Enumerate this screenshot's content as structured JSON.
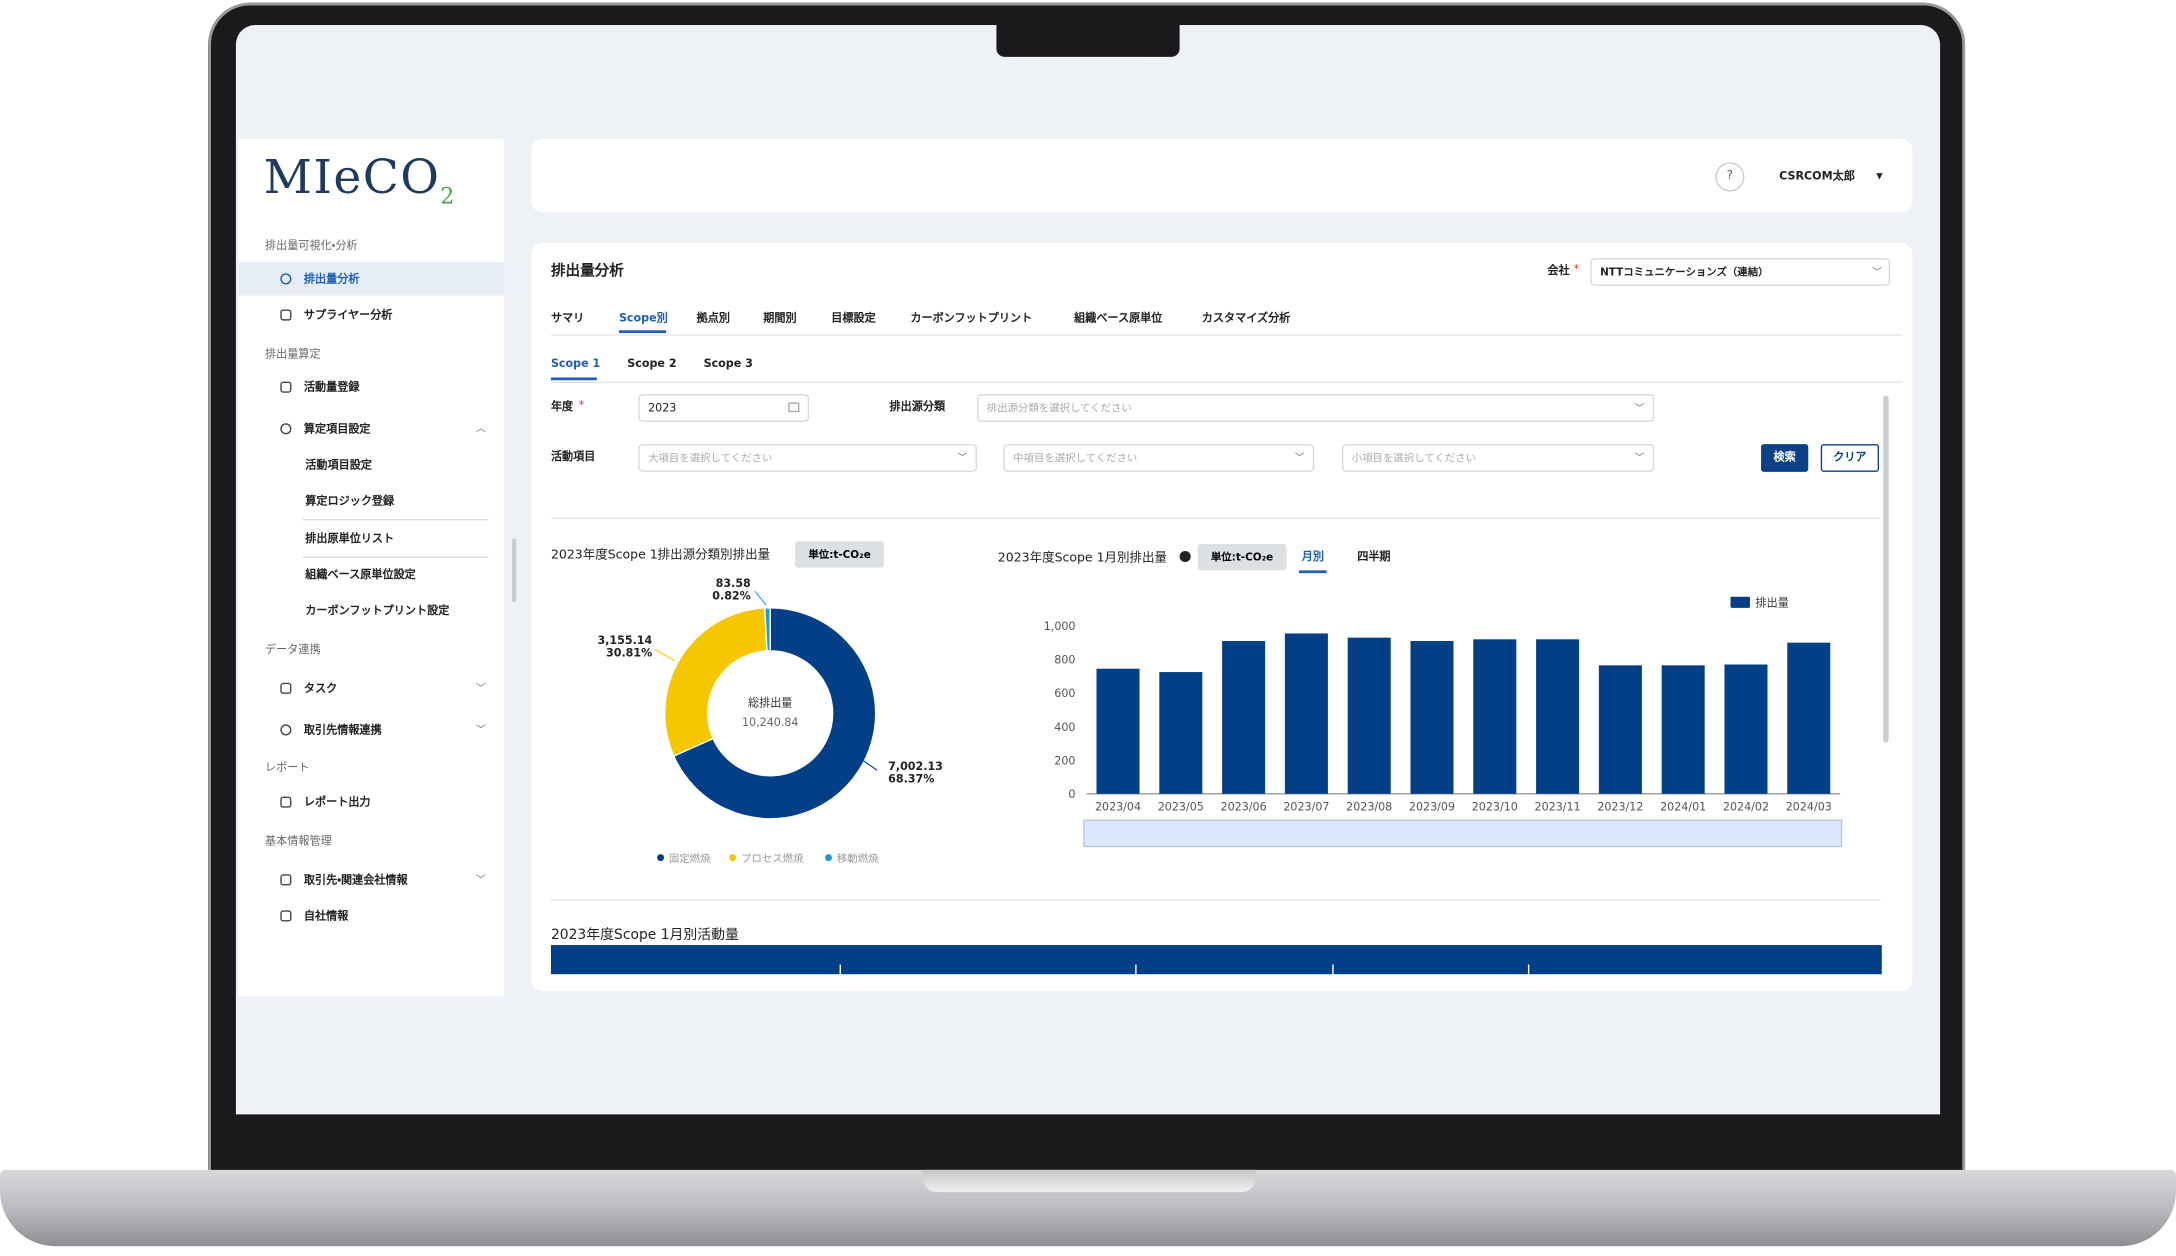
{
  "brand": {
    "logo": "MIeCO",
    "logo_sub": "2"
  },
  "sidebar": {
    "groups": [
      {
        "title": "排出量可視化・分析",
        "items": [
          "排出量分析",
          "サプライヤー分析"
        ]
      },
      {
        "title": "排出量算定",
        "items": [
          "活動量登録",
          "算定項目設定"
        ],
        "subitems": [
          "活動項目設定",
          "算定ロジック登録",
          "排出原単位リスト",
          "組織ベース原単位設定",
          "カーボンフットプリント設定"
        ]
      },
      {
        "title": "データ連携",
        "items": [
          "タスク",
          "取引先情報連携"
        ]
      },
      {
        "title": "レポート",
        "items": [
          "レポート出力"
        ]
      },
      {
        "title": "基本情報管理",
        "items": [
          "取引先・関連会社情報",
          "自社情報"
        ]
      }
    ]
  },
  "header": {
    "help": "?",
    "user": "CSRCOM太郎"
  },
  "page": {
    "title": "排出量分析",
    "company_label": "会社",
    "required": "*",
    "company": "NTTコミュニケーションズ（連結）",
    "tabs": [
      "サマリ",
      "Scope別",
      "拠点別",
      "期間別",
      "目標設定",
      "カーボンフットプリント",
      "組織ベース原単位",
      "カスタマイズ分析"
    ],
    "scope_tabs": [
      "Scope 1",
      "Scope 2",
      "Scope 3"
    ],
    "filters": {
      "year_label": "年度",
      "year": "2023",
      "source_label": "排出源分類",
      "source_placeholder": "排出源分類を選択してください",
      "activity_label": "活動項目",
      "large_placeholder": "大項目を選択してください",
      "medium_placeholder": "中項目を選択してください",
      "small_placeholder": "小項目を選択してください",
      "search": "検索",
      "clear": "クリア"
    }
  },
  "chart_data": [
    {
      "type": "pie",
      "title": "2023年度Scope 1排出源分類別排出量",
      "unit": "単位:t-CO₂e",
      "center_label": "総排出量",
      "total": "10,240.84",
      "categories": [
        "固定燃焼",
        "プロセス燃焼",
        "移動燃焼"
      ],
      "colors": [
        "#033f86",
        "#f6c700",
        "#1b9bd7"
      ],
      "values": [
        7002.13,
        3155.14,
        83.58
      ],
      "value_labels": [
        "7,002.13",
        "3,155.14",
        "83.58"
      ],
      "shares": [
        68.37,
        30.81,
        0.82
      ],
      "share_labels": [
        "68.37%",
        "30.81%",
        "0.82%"
      ]
    },
    {
      "type": "bar",
      "title": "2023年度Scope 1月別排出量",
      "unit": "単位:t-CO₂e",
      "views": [
        "月別",
        "四半期"
      ],
      "categories": [
        "2023/04",
        "2023/05",
        "2023/06",
        "2023/07",
        "2023/08",
        "2023/09",
        "2023/10",
        "2023/11",
        "2023/12",
        "2024/01",
        "2024/02",
        "2024/03"
      ],
      "series": [
        {
          "name": "排出量",
          "color": "#033f86",
          "values": [
            745,
            725,
            910,
            955,
            930,
            910,
            920,
            920,
            765,
            765,
            770,
            900
          ]
        }
      ],
      "ylim": [
        0,
        1000
      ],
      "yticks": [
        0,
        200,
        400,
        600,
        800,
        {
          "value": 1000,
          "label": "1,000"
        }
      ]
    },
    {
      "type": "bar",
      "title": "2023年度Scope 1月別活動量"
    }
  ]
}
